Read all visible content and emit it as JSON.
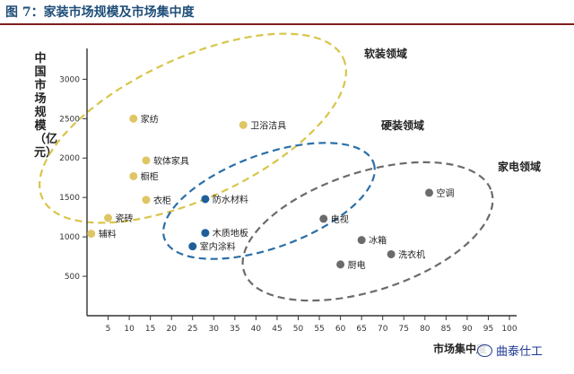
{
  "figure": {
    "title": "图 7：家装市场规模及市场集中度"
  },
  "watermark": "曲泰仕工",
  "chart_data": {
    "type": "scatter",
    "title": "",
    "xlabel": "市场集中度",
    "ylabel": "中国市场规模（亿元）",
    "xlim": [
      0,
      100
    ],
    "ylim": [
      0,
      3300
    ],
    "x_ticks": [
      "5",
      "10",
      "15",
      "20",
      "25",
      "30",
      "35",
      "40",
      "45",
      "50",
      "55",
      "60",
      "65",
      "70",
      "75",
      "80",
      "85",
      "90",
      "95",
      "100"
    ],
    "y_ticks": [
      "500",
      "1000",
      "1500",
      "2000",
      "2500",
      "3000"
    ],
    "grid": false,
    "groups": [
      {
        "name": "软装领域",
        "color": "#e0c565",
        "ring_color": "#d8c54a"
      },
      {
        "name": "硬装领域",
        "color": "#1f5f99",
        "ring_color": "#2a6fa8"
      },
      {
        "name": "家电领域",
        "color": "#6b6b6b",
        "ring_color": "#6b6b6b"
      }
    ],
    "points": [
      {
        "label": "家纺",
        "x": 11,
        "y": 2500,
        "group": 0
      },
      {
        "label": "卫浴洁具",
        "x": 37,
        "y": 2420,
        "group": 0
      },
      {
        "label": "软体家具",
        "x": 14,
        "y": 1970,
        "group": 0
      },
      {
        "label": "橱柜",
        "x": 11,
        "y": 1770,
        "group": 0
      },
      {
        "label": "衣柜",
        "x": 14,
        "y": 1470,
        "group": 0
      },
      {
        "label": "瓷砖",
        "x": 5,
        "y": 1240,
        "group": 0
      },
      {
        "label": "辅料",
        "x": 1,
        "y": 1040,
        "group": 0
      },
      {
        "label": "防水材料",
        "x": 28,
        "y": 1480,
        "group": 1
      },
      {
        "label": "木质地板",
        "x": 28,
        "y": 1050,
        "group": 1
      },
      {
        "label": "室内涂料",
        "x": 25,
        "y": 880,
        "group": 1
      },
      {
        "label": "空调",
        "x": 81,
        "y": 1560,
        "group": 2
      },
      {
        "label": "电视",
        "x": 56,
        "y": 1230,
        "group": 2
      },
      {
        "label": "冰箱",
        "x": 65,
        "y": 960,
        "group": 2
      },
      {
        "label": "洗衣机",
        "x": 72,
        "y": 780,
        "group": 2
      },
      {
        "label": "厨电",
        "x": 60,
        "y": 650,
        "group": 2
      }
    ]
  }
}
